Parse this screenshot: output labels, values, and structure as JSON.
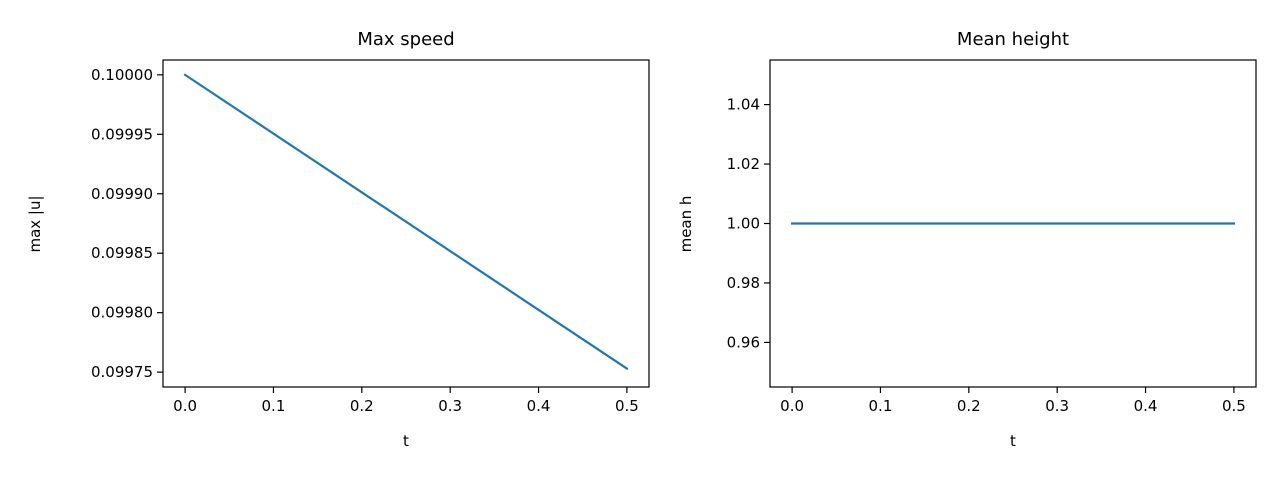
{
  "chart_data": [
    {
      "type": "line",
      "title": "Max speed",
      "xlabel": "t",
      "ylabel": "max |u|",
      "xlim": [
        -0.025,
        0.525
      ],
      "ylim": [
        0.0997375,
        0.1000125
      ],
      "xticks": [
        0.0,
        0.1,
        0.2,
        0.3,
        0.4,
        0.5
      ],
      "xtick_labels": [
        "0.0",
        "0.1",
        "0.2",
        "0.3",
        "0.4",
        "0.5"
      ],
      "yticks": [
        0.09975,
        0.0998,
        0.09985,
        0.0999,
        0.09995,
        0.1
      ],
      "ytick_labels": [
        "0.09975",
        "0.09980",
        "0.09985",
        "0.09990",
        "0.09995",
        "0.10000"
      ],
      "grid": false,
      "color": "#1f77b4",
      "series": [
        {
          "x": [
            0.0,
            0.5
          ],
          "y": [
            0.1,
            0.099753
          ]
        }
      ]
    },
    {
      "type": "line",
      "title": "Mean height",
      "xlabel": "t",
      "ylabel": "mean h",
      "xlim": [
        -0.025,
        0.525
      ],
      "ylim": [
        0.945,
        1.055
      ],
      "xticks": [
        0.0,
        0.1,
        0.2,
        0.3,
        0.4,
        0.5
      ],
      "xtick_labels": [
        "0.0",
        "0.1",
        "0.2",
        "0.3",
        "0.4",
        "0.5"
      ],
      "yticks": [
        0.96,
        0.98,
        1.0,
        1.02,
        1.04
      ],
      "ytick_labels": [
        "0.96",
        "0.98",
        "1.00",
        "1.02",
        "1.04"
      ],
      "grid": false,
      "color": "#1f77b4",
      "series": [
        {
          "x": [
            0.0,
            0.5
          ],
          "y": [
            1.0,
            1.0
          ]
        }
      ]
    }
  ]
}
